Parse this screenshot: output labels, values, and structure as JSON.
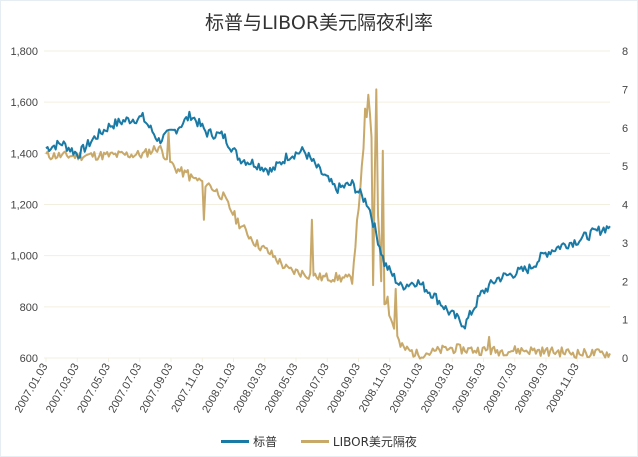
{
  "chart_data": {
    "type": "line",
    "title": "标普与LIBOR美元隔夜利率",
    "xlabel": "",
    "ylabel_left": "",
    "ylabel_right": "",
    "y_left_range": [
      600,
      1800
    ],
    "y_left_ticks": [
      "600",
      "800",
      "1,000",
      "1,200",
      "1,400",
      "1,600",
      "1,800"
    ],
    "y_right_range": [
      0,
      8
    ],
    "y_right_ticks": [
      "0",
      "1",
      "2",
      "3",
      "4",
      "5",
      "6",
      "7",
      "8"
    ],
    "x_tick_labels": [
      "2007.01.03",
      "2007.03.03",
      "2007.05.03",
      "2007.07.03",
      "2007.09.03",
      "2007.11.03",
      "2008.01.03",
      "2008.03.03",
      "2008.05.03",
      "2008.07.03",
      "2008.09.03",
      "2008.11.03",
      "2009.01.03",
      "2009.03.03",
      "2009.05.03",
      "2009.07.03",
      "2009.09.03",
      "2009.11.03"
    ],
    "grid": true,
    "legend_position": "bottom",
    "x": [
      "2007.01",
      "2007.02",
      "2007.03",
      "2007.04",
      "2007.05",
      "2007.06",
      "2007.07",
      "2007.08",
      "2007.09",
      "2007.10",
      "2007.11",
      "2007.12",
      "2008.01",
      "2008.02",
      "2008.03",
      "2008.04",
      "2008.05",
      "2008.06",
      "2008.07",
      "2008.08",
      "2008.09",
      "2008.10",
      "2008.11",
      "2008.12",
      "2009.01",
      "2009.02",
      "2009.03",
      "2009.04",
      "2009.05",
      "2009.06",
      "2009.07",
      "2009.08",
      "2009.09",
      "2009.10",
      "2009.11",
      "2009.12"
    ],
    "series": [
      {
        "name": "标普",
        "axis": "left",
        "color": "#1a7aa6",
        "values": [
          1420,
          1440,
          1395,
          1460,
          1510,
          1530,
          1540,
          1450,
          1490,
          1550,
          1480,
          1470,
          1380,
          1360,
          1330,
          1390,
          1410,
          1330,
          1260,
          1280,
          1200,
          970,
          880,
          900,
          850,
          780,
          730,
          850,
          910,
          930,
          950,
          1010,
          1040,
          1060,
          1090,
          1115
        ]
      },
      {
        "name": "LIBOR美元隔夜",
        "axis": "right",
        "color": "#c8a96a",
        "values": [
          5.28,
          5.27,
          5.27,
          5.28,
          5.28,
          5.3,
          5.3,
          5.5,
          4.95,
          4.7,
          4.55,
          4.2,
          3.5,
          3.0,
          2.7,
          2.3,
          2.2,
          2.1,
          2.1,
          2.05,
          6.8,
          1.5,
          0.3,
          0.1,
          0.15,
          0.25,
          0.22,
          0.2,
          0.18,
          0.2,
          0.2,
          0.17,
          0.16,
          0.12,
          0.12,
          0.12
        ]
      }
    ]
  },
  "legend": {
    "items": [
      {
        "label": "标普",
        "color": "#1a7aa6"
      },
      {
        "label": "LIBOR美元隔夜",
        "color": "#c8a96a"
      }
    ]
  },
  "colors": {
    "grid": "#f2efe0",
    "axis_text": "#444444",
    "title": "#333333"
  }
}
